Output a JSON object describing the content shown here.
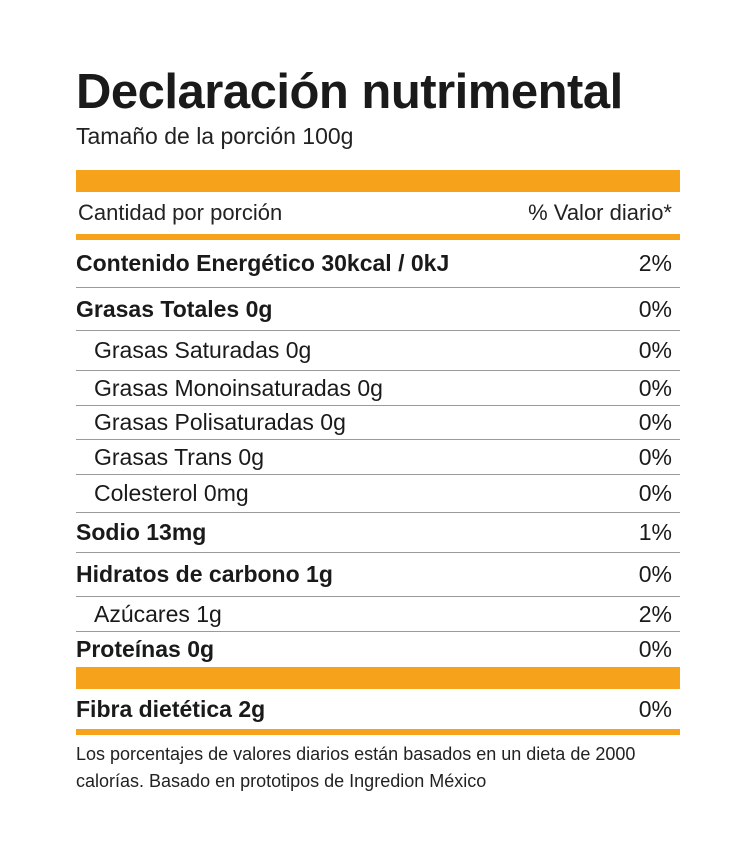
{
  "title": "Declaración nutrimental",
  "serving_size": "Tamaño de la porción 100g",
  "header": {
    "left": "Cantidad por porción",
    "right": "% Valor diario*"
  },
  "rows": [
    {
      "name": "Contenido Energético 30kcal / 0kJ",
      "pct": "2%"
    },
    {
      "name": "Grasas Totales 0g",
      "pct": "0%"
    },
    {
      "name": "Grasas Saturadas 0g",
      "pct": "0%"
    },
    {
      "name": "Grasas Monoinsaturadas 0g",
      "pct": "0%"
    },
    {
      "name": "Grasas Polisaturadas 0g",
      "pct": "0%"
    },
    {
      "name": "Grasas Trans 0g",
      "pct": "0%"
    },
    {
      "name": "Colesterol 0mg",
      "pct": "0%"
    },
    {
      "name": "Sodio 13mg",
      "pct": "1%"
    },
    {
      "name": "Hidratos de carbono 1g",
      "pct": "0%"
    },
    {
      "name": "Azúcares 1g",
      "pct": "2%"
    },
    {
      "name": "Proteínas 0g",
      "pct": "0%"
    }
  ],
  "fiber": {
    "name": "Fibra dietética 2g",
    "pct": "0%"
  },
  "footnote": "Los porcentajes de valores diarios están basados en un dieta de 2000 calorías. Basado en prototipos de Ingredion México",
  "colors": {
    "accent": "#f7a21b",
    "text": "#1a1a1a",
    "divider": "#9a9a9a"
  }
}
